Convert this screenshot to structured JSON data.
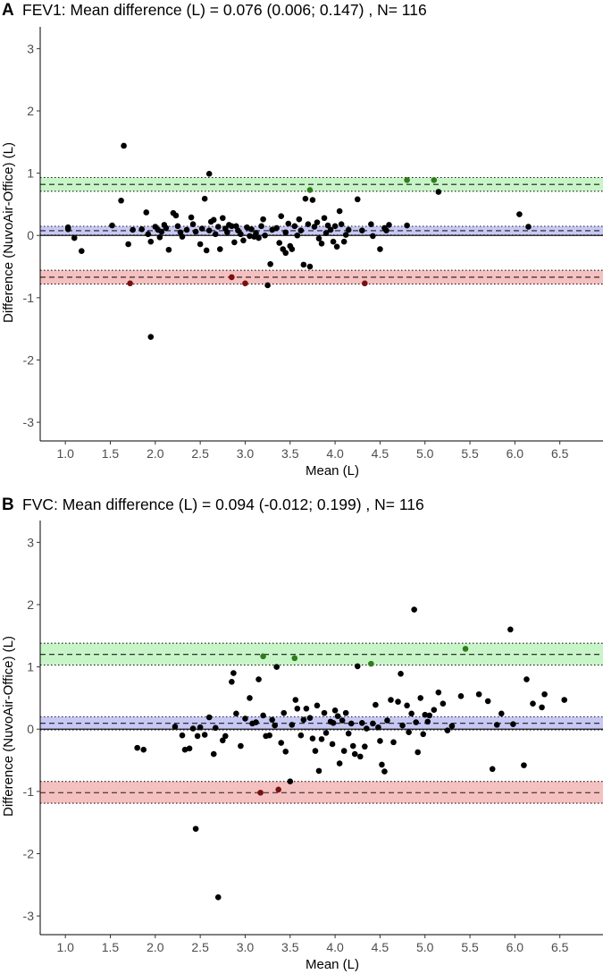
{
  "chart_data": [
    {
      "type": "scatter",
      "panel_label": "A",
      "title": "FEV1: Mean difference (L) = 0.076 (0.006; 0.147) , N= 116",
      "xlabel": "Mean (L)",
      "ylabel": "Difference (NuvoAir-Office) (L)",
      "xlim": [
        0.72,
        6.98
      ],
      "ylim": [
        -3.3,
        3.35
      ],
      "x_ticks": [
        "1.0",
        "1.5",
        "2.0",
        "2.5",
        "3.0",
        "3.5",
        "4.0",
        "4.5",
        "5.0",
        "5.5",
        "6.0",
        "6.5"
      ],
      "y_ticks": [
        "-3",
        "-2",
        "-1",
        "0",
        "1",
        "2",
        "3"
      ],
      "zero_line": 0,
      "bands": [
        {
          "name": "Upper limit of agreement",
          "value": 0.82,
          "ci": [
            0.71,
            0.93
          ],
          "fill": "#c8f5c8",
          "line": "#1a1a1a"
        },
        {
          "name": "Mean difference",
          "value": 0.076,
          "ci": [
            0.006,
            0.147
          ],
          "fill": "#c8c8f5",
          "line": "#1a1a1a"
        },
        {
          "name": "Lower limit of agreement",
          "value": -0.67,
          "ci": [
            -0.78,
            -0.56
          ],
          "fill": "#f5c0c0",
          "line": "#1a1a1a"
        }
      ],
      "point_colors": {
        "default": "#000000",
        "upper": "#2e7d1e",
        "mean": "#1a1a7a",
        "lower": "#7a1010"
      },
      "points": [
        [
          1.03,
          0.13
        ],
        [
          1.03,
          0.1
        ],
        [
          1.1,
          -0.04
        ],
        [
          1.18,
          -0.25
        ],
        [
          1.52,
          0.16
        ],
        [
          1.62,
          0.56
        ],
        [
          1.65,
          1.44
        ],
        [
          1.7,
          -0.14
        ],
        [
          1.72,
          -0.77,
          "lower"
        ],
        [
          1.75,
          0.09
        ],
        [
          1.85,
          0.1
        ],
        [
          1.9,
          0.37
        ],
        [
          1.92,
          0.02
        ],
        [
          1.95,
          -1.63
        ],
        [
          1.95,
          -0.1
        ],
        [
          2.0,
          0.14
        ],
        [
          2.03,
          0.09
        ],
        [
          2.05,
          -0.03
        ],
        [
          2.07,
          0.06
        ],
        [
          2.1,
          0.17
        ],
        [
          2.12,
          0.12
        ],
        [
          2.15,
          -0.23
        ],
        [
          2.2,
          0.36
        ],
        [
          2.23,
          0.32
        ],
        [
          2.25,
          0.15
        ],
        [
          2.28,
          0.05
        ],
        [
          2.3,
          -0.02
        ],
        [
          2.35,
          0.09
        ],
        [
          2.4,
          0.29
        ],
        [
          2.42,
          0.18
        ],
        [
          2.45,
          0.06
        ],
        [
          2.5,
          -0.14
        ],
        [
          2.52,
          0.11
        ],
        [
          2.55,
          0.59
        ],
        [
          2.57,
          -0.24
        ],
        [
          2.6,
          0.99
        ],
        [
          2.6,
          0.08
        ],
        [
          2.62,
          0.22
        ],
        [
          2.65,
          0.25
        ],
        [
          2.67,
          0.02
        ],
        [
          2.7,
          0.14
        ],
        [
          2.72,
          -0.22
        ],
        [
          2.75,
          0.28
        ],
        [
          2.78,
          0.11
        ],
        [
          2.8,
          0.05
        ],
        [
          2.82,
          0.17
        ],
        [
          2.85,
          0.15
        ],
        [
          2.85,
          -0.67,
          "lower"
        ],
        [
          2.88,
          -0.11
        ],
        [
          2.9,
          0.15
        ],
        [
          2.92,
          0.08
        ],
        [
          2.95,
          0.02
        ],
        [
          2.98,
          -0.08
        ],
        [
          3.0,
          -0.77,
          "lower"
        ],
        [
          3.02,
          0.13
        ],
        [
          3.05,
          -0.01
        ],
        [
          3.07,
          0.1
        ],
        [
          3.1,
          -0.02
        ],
        [
          3.12,
          0.04
        ],
        [
          3.15,
          -0.04
        ],
        [
          3.2,
          0.26
        ],
        [
          3.22,
          0.0
        ],
        [
          3.25,
          -0.8
        ],
        [
          3.28,
          -0.46
        ],
        [
          3.3,
          0.09
        ],
        [
          3.35,
          0.12
        ],
        [
          3.38,
          -0.12
        ],
        [
          3.4,
          0.31
        ],
        [
          3.42,
          -0.22
        ],
        [
          3.45,
          0.05
        ],
        [
          3.45,
          -0.28
        ],
        [
          3.48,
          0.19
        ],
        [
          3.5,
          -0.17
        ],
        [
          3.52,
          -0.22
        ],
        [
          3.55,
          0.15
        ],
        [
          3.58,
          0.0
        ],
        [
          3.6,
          0.26
        ],
        [
          3.62,
          0.08
        ],
        [
          3.65,
          -0.47
        ],
        [
          3.67,
          0.59
        ],
        [
          3.7,
          0.18
        ],
        [
          3.72,
          0.73,
          "upper"
        ],
        [
          3.72,
          -0.5
        ],
        [
          3.75,
          0.57
        ],
        [
          3.77,
          0.14
        ],
        [
          3.8,
          0.21
        ],
        [
          3.82,
          -0.05
        ],
        [
          3.85,
          -0.13
        ],
        [
          3.88,
          0.28
        ],
        [
          3.9,
          0.04
        ],
        [
          3.92,
          0.16
        ],
        [
          3.95,
          0.09
        ],
        [
          3.98,
          -0.1
        ],
        [
          4.0,
          0.15
        ],
        [
          4.02,
          -0.18
        ],
        [
          4.05,
          0.39
        ],
        [
          4.07,
          0.18
        ],
        [
          4.1,
          -0.1
        ],
        [
          4.12,
          0.01
        ],
        [
          4.15,
          0.09
        ],
        [
          4.25,
          0.58
        ],
        [
          4.3,
          0.08
        ],
        [
          4.33,
          -0.77,
          "lower"
        ],
        [
          4.4,
          0.18
        ],
        [
          4.42,
          -0.01
        ],
        [
          4.5,
          -0.22
        ],
        [
          4.55,
          0.12
        ],
        [
          4.57,
          0.08
        ],
        [
          4.6,
          0.17
        ],
        [
          4.8,
          0.16
        ],
        [
          4.8,
          0.89,
          "upper"
        ],
        [
          5.1,
          0.89,
          "upper"
        ],
        [
          5.15,
          0.7
        ],
        [
          6.05,
          0.34
        ],
        [
          6.15,
          0.14
        ],
        [
          3.18,
          0.15
        ]
      ]
    },
    {
      "type": "scatter",
      "panel_label": "B",
      "title": "FVC: Mean difference (L) = 0.094 (-0.012; 0.199) , N= 116",
      "xlabel": "Mean (L)",
      "ylabel": "Difference (NuvoAir-Office) (L)",
      "xlim": [
        0.72,
        6.98
      ],
      "ylim": [
        -3.3,
        3.35
      ],
      "x_ticks": [
        "1.0",
        "1.5",
        "2.0",
        "2.5",
        "3.0",
        "3.5",
        "4.0",
        "4.5",
        "5.0",
        "5.5",
        "6.0",
        "6.5"
      ],
      "y_ticks": [
        "-3",
        "-2",
        "-1",
        "0",
        "1",
        "2",
        "3"
      ],
      "zero_line": 0,
      "bands": [
        {
          "name": "Upper limit of agreement",
          "value": 1.2,
          "ci": [
            1.03,
            1.38
          ],
          "fill": "#c8f5c8",
          "line": "#1a1a1a"
        },
        {
          "name": "Mean difference",
          "value": 0.094,
          "ci": [
            -0.012,
            0.199
          ],
          "fill": "#c8c8f5",
          "line": "#1a1a1a"
        },
        {
          "name": "Lower limit of agreement",
          "value": -1.02,
          "ci": [
            -1.19,
            -0.84
          ],
          "fill": "#f5c0c0",
          "line": "#1a1a1a"
        }
      ],
      "point_colors": {
        "default": "#000000",
        "upper": "#2e7d1e",
        "mean": "#1a1a7a",
        "lower": "#7a1010"
      },
      "points": [
        [
          1.8,
          -0.3
        ],
        [
          1.87,
          -0.33
        ],
        [
          2.22,
          0.04
        ],
        [
          2.3,
          -0.1
        ],
        [
          2.33,
          -0.33
        ],
        [
          2.38,
          -0.31
        ],
        [
          2.42,
          0.01
        ],
        [
          2.45,
          -1.6
        ],
        [
          2.47,
          -0.11
        ],
        [
          2.5,
          0.03
        ],
        [
          2.55,
          -0.09
        ],
        [
          2.6,
          0.19
        ],
        [
          2.65,
          -0.4
        ],
        [
          2.67,
          0.02
        ],
        [
          2.7,
          -2.7
        ],
        [
          2.75,
          -0.18
        ],
        [
          2.78,
          -0.11
        ],
        [
          2.85,
          0.76
        ],
        [
          2.87,
          0.9
        ],
        [
          2.9,
          0.25
        ],
        [
          2.95,
          -0.27
        ],
        [
          3.0,
          0.17
        ],
        [
          3.05,
          0.5
        ],
        [
          3.08,
          0.09
        ],
        [
          3.12,
          0.11
        ],
        [
          3.15,
          0.8
        ],
        [
          3.17,
          -1.02,
          "lower"
        ],
        [
          3.2,
          0.22
        ],
        [
          3.2,
          1.17,
          "upper"
        ],
        [
          3.23,
          -0.11
        ],
        [
          3.27,
          -0.1
        ],
        [
          3.3,
          0.15
        ],
        [
          3.33,
          0.06
        ],
        [
          3.35,
          1.0
        ],
        [
          3.37,
          -0.97,
          "lower"
        ],
        [
          3.4,
          -0.22
        ],
        [
          3.43,
          0.26
        ],
        [
          3.45,
          -0.36
        ],
        [
          3.5,
          -0.84
        ],
        [
          3.52,
          0.07
        ],
        [
          3.55,
          1.14,
          "upper"
        ],
        [
          3.56,
          0.47
        ],
        [
          3.58,
          0.33
        ],
        [
          3.62,
          -0.1
        ],
        [
          3.65,
          0.15
        ],
        [
          3.68,
          0.33
        ],
        [
          3.72,
          0.18
        ],
        [
          3.75,
          -0.15
        ],
        [
          3.78,
          -0.35
        ],
        [
          3.8,
          0.38
        ],
        [
          3.82,
          -0.67
        ],
        [
          3.85,
          -0.16
        ],
        [
          3.88,
          0.26
        ],
        [
          3.9,
          -0.06
        ],
        [
          3.95,
          0.12
        ],
        [
          3.97,
          -0.24
        ],
        [
          4.0,
          0.3
        ],
        [
          4.03,
          0.21
        ],
        [
          4.05,
          -0.55
        ],
        [
          4.08,
          0.14
        ],
        [
          4.1,
          -0.35
        ],
        [
          4.12,
          0.26
        ],
        [
          4.15,
          -0.07
        ],
        [
          4.18,
          0.09
        ],
        [
          4.2,
          -0.27
        ],
        [
          4.22,
          -0.4
        ],
        [
          4.25,
          1.01
        ],
        [
          4.28,
          -0.44
        ],
        [
          4.3,
          0.1
        ],
        [
          4.33,
          -0.28
        ],
        [
          4.35,
          0.01
        ],
        [
          4.4,
          1.05,
          "upper"
        ],
        [
          4.42,
          0.09
        ],
        [
          4.45,
          0.39
        ],
        [
          4.48,
          0.03
        ],
        [
          4.5,
          -0.19
        ],
        [
          4.52,
          -0.57
        ],
        [
          4.55,
          -0.68
        ],
        [
          4.58,
          0.14
        ],
        [
          4.62,
          0.47
        ],
        [
          4.65,
          -0.21
        ],
        [
          4.7,
          0.44
        ],
        [
          4.73,
          0.89
        ],
        [
          4.75,
          0.06
        ],
        [
          4.8,
          0.38
        ],
        [
          4.82,
          -0.05
        ],
        [
          4.85,
          0.25
        ],
        [
          4.88,
          1.92
        ],
        [
          4.9,
          0.11
        ],
        [
          4.92,
          -0.37
        ],
        [
          4.95,
          0.5
        ],
        [
          4.98,
          -0.08
        ],
        [
          5.0,
          0.23
        ],
        [
          5.03,
          0.12
        ],
        [
          5.05,
          0.22
        ],
        [
          5.1,
          0.31
        ],
        [
          5.15,
          0.59
        ],
        [
          5.2,
          0.41
        ],
        [
          5.25,
          -0.02
        ],
        [
          5.3,
          0.05
        ],
        [
          5.4,
          0.53
        ],
        [
          5.45,
          1.29,
          "upper"
        ],
        [
          5.6,
          0.56
        ],
        [
          5.7,
          0.45
        ],
        [
          5.75,
          -0.64
        ],
        [
          5.8,
          0.07
        ],
        [
          5.85,
          0.25
        ],
        [
          5.95,
          1.6
        ],
        [
          5.98,
          0.08
        ],
        [
          6.1,
          -0.58
        ],
        [
          6.13,
          0.8
        ],
        [
          6.2,
          0.41
        ],
        [
          6.3,
          0.35
        ],
        [
          6.33,
          0.56
        ],
        [
          6.55,
          0.47
        ],
        [
          3.98,
          0.1
        ]
      ]
    }
  ]
}
